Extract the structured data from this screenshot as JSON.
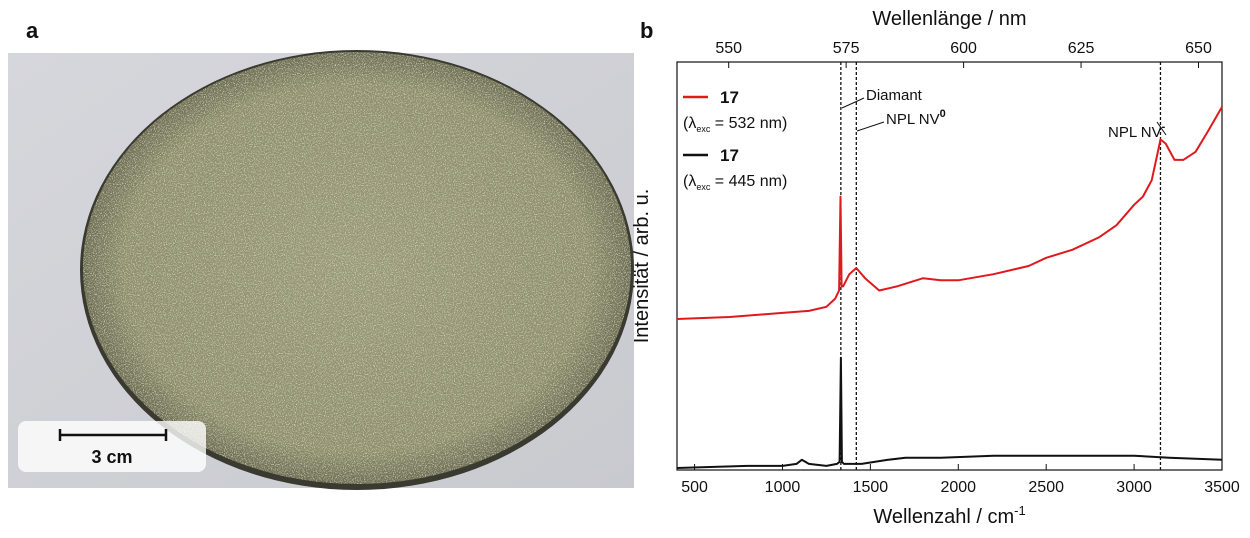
{
  "panel_a": {
    "label": "a",
    "scale_bar": "3 cm"
  },
  "panel_b": {
    "label": "b"
  },
  "chart_data": {
    "type": "line",
    "xlabel": "Wellenzahl / cm",
    "xlabel_sup": "-1",
    "x2label": "Wellenlänge / nm",
    "ylabel": "Intensität / arb. u.",
    "xlim": [
      400,
      3500
    ],
    "xticks": [
      500,
      1000,
      1500,
      2000,
      2500,
      3000,
      3500
    ],
    "x2lim": [
      539,
      655
    ],
    "x2ticks": [
      550,
      575,
      600,
      625,
      650
    ],
    "ylim": [
      0,
      100
    ],
    "series": [
      {
        "name": "17",
        "excitation": [
          "(λ",
          "exc",
          " = 532 nm)"
        ],
        "color": "#e0191d",
        "x": [
          400,
          700,
          1000,
          1150,
          1250,
          1300,
          1322,
          1330,
          1336,
          1345,
          1380,
          1420,
          1470,
          1550,
          1650,
          1800,
          1900,
          2000,
          2200,
          2400,
          2500,
          2650,
          2800,
          2900,
          3000,
          3050,
          3100,
          3130,
          3150,
          3180,
          3230,
          3280,
          3350,
          3420,
          3500
        ],
        "values": [
          37,
          37.5,
          38.5,
          39,
          40,
          42,
          44,
          67,
          45,
          45,
          48,
          49.5,
          47,
          44,
          45,
          47,
          46.5,
          46.5,
          48,
          50,
          52,
          54,
          57,
          60,
          65,
          67,
          71,
          77,
          81,
          80,
          76,
          76,
          78,
          83,
          89
        ]
      },
      {
        "name": "17",
        "excitation": [
          "(λ",
          "exc",
          " = 445 nm)"
        ],
        "color": "#111111",
        "x": [
          400,
          800,
          1000,
          1080,
          1110,
          1150,
          1250,
          1310,
          1325,
          1332,
          1338,
          1350,
          1450,
          1600,
          1700,
          1900,
          2200,
          2500,
          2800,
          3000,
          3200,
          3500
        ],
        "values": [
          0.5,
          1,
          1,
          1.5,
          2.5,
          1.5,
          1,
          1.5,
          2,
          27.5,
          2,
          1.5,
          1.5,
          2.5,
          3,
          3,
          3.5,
          3.5,
          3.5,
          3.5,
          3,
          2.5
        ]
      }
    ],
    "annotations": [
      {
        "text": "Diamant",
        "x": 1332
      },
      {
        "text": "NPL NV",
        "sup": "0",
        "x": 1420
      },
      {
        "text": "NPL NV",
        "sup": "-",
        "x": 3150
      }
    ]
  }
}
